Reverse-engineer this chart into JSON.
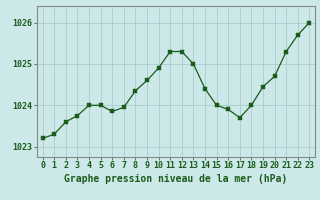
{
  "x": [
    0,
    1,
    2,
    3,
    4,
    5,
    6,
    7,
    8,
    9,
    10,
    11,
    12,
    13,
    14,
    15,
    16,
    17,
    18,
    19,
    20,
    21,
    22,
    23
  ],
  "y": [
    1023.2,
    1023.3,
    1023.6,
    1023.75,
    1024.0,
    1024.0,
    1023.85,
    1023.95,
    1024.35,
    1024.6,
    1024.9,
    1025.3,
    1025.3,
    1025.0,
    1024.4,
    1024.0,
    1023.9,
    1023.7,
    1024.0,
    1024.45,
    1024.7,
    1025.3,
    1025.7,
    1026.0
  ],
  "line_color": "#1a5c1a",
  "marker_color": "#1a5c1a",
  "bg_color": "#cce8e8",
  "grid_color": "#aacccc",
  "title": "Graphe pression niveau de la mer (hPa)",
  "ylim": [
    1022.75,
    1026.4
  ],
  "yticks": [
    1023,
    1024,
    1025,
    1026
  ],
  "xticks": [
    0,
    1,
    2,
    3,
    4,
    5,
    6,
    7,
    8,
    9,
    10,
    11,
    12,
    13,
    14,
    15,
    16,
    17,
    18,
    19,
    20,
    21,
    22,
    23
  ],
  "title_fontsize": 7.0,
  "tick_fontsize": 6.0,
  "axis_label_color": "#1a5c1a",
  "border_color": "#888888"
}
